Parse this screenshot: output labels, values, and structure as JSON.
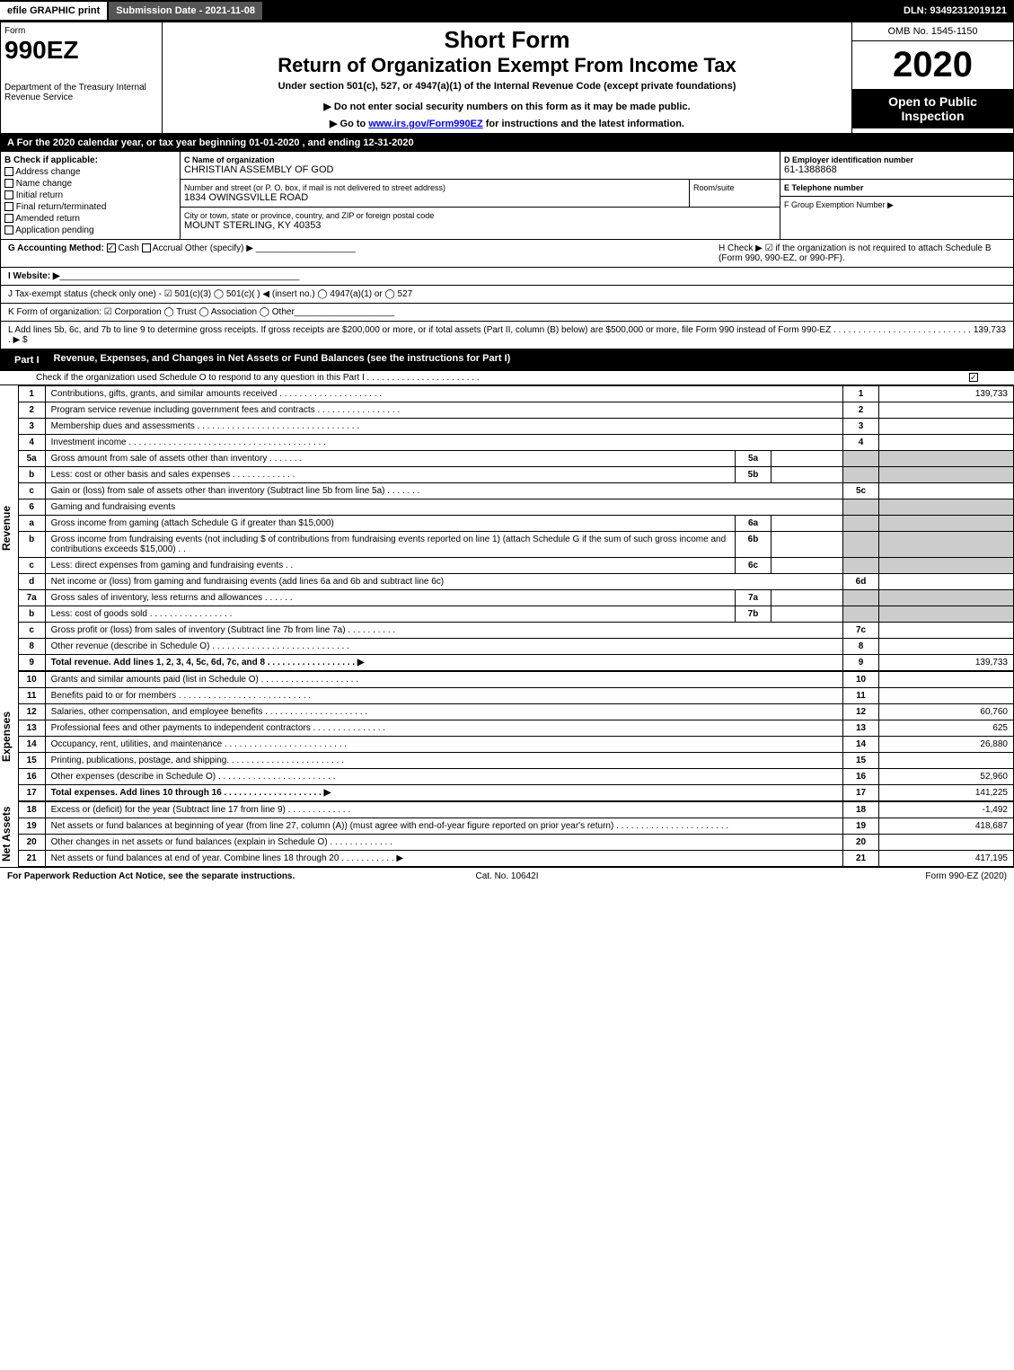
{
  "topbar": {
    "efile": "efile GRAPHIC print",
    "submission": "Submission Date - 2021-11-08",
    "dln": "DLN: 93492312019121"
  },
  "header": {
    "form_label": "Form",
    "form_number": "990EZ",
    "dept": "Department of the Treasury Internal Revenue Service",
    "short_form": "Short Form",
    "return_title": "Return of Organization Exempt From Income Tax",
    "under": "Under section 501(c), 527, or 4947(a)(1) of the Internal Revenue Code (except private foundations)",
    "donot": "▶ Do not enter social security numbers on this form as it may be made public.",
    "goto_prefix": "▶ Go to ",
    "goto_link": "www.irs.gov/Form990EZ",
    "goto_suffix": " for instructions and the latest information.",
    "omb": "OMB No. 1545-1150",
    "year": "2020",
    "open": "Open to Public Inspection"
  },
  "line_a": "A For the 2020 calendar year, or tax year beginning 01-01-2020 , and ending 12-31-2020",
  "box_b": {
    "header": "B Check if applicable:",
    "items": [
      "Address change",
      "Name change",
      "Initial return",
      "Final return/terminated",
      "Amended return",
      "Application pending"
    ]
  },
  "box_c": {
    "label": "C Name of organization",
    "name": "CHRISTIAN ASSEMBLY OF GOD",
    "addr_label": "Number and street (or P. O. box, if mail is not delivered to street address)",
    "addr": "1834 OWINGSVILLE ROAD",
    "room_label": "Room/suite",
    "city_label": "City or town, state or province, country, and ZIP or foreign postal code",
    "city": "MOUNT STERLING, KY  40353"
  },
  "box_d": {
    "label": "D Employer identification number",
    "ein": "61-1388868",
    "tel_label": "E Telephone number",
    "grp_label": "F Group Exemption Number  ▶"
  },
  "line_g": {
    "label": "G Accounting Method:",
    "cash": "Cash",
    "accrual": "Accrual",
    "other": "Other (specify) ▶"
  },
  "line_h": "H  Check ▶ ☑ if the organization is not required to attach Schedule B (Form 990, 990-EZ, or 990-PF).",
  "line_i": "I Website: ▶",
  "line_j": "J Tax-exempt status (check only one) - ☑ 501(c)(3)  ◯ 501(c)(  ) ◀ (insert no.)  ◯ 4947(a)(1) or  ◯ 527",
  "line_k": "K Form of organization:  ☑ Corporation  ◯ Trust  ◯ Association  ◯ Other",
  "line_l": {
    "text": "L Add lines 5b, 6c, and 7b to line 9 to determine gross receipts. If gross receipts are $200,000 or more, or if total assets (Part II, column (B) below) are $500,000 or more, file Form 990 instead of Form 990-EZ . . . . . . . . . . . . . . . . . . . . . . . . . . . . . ▶ $",
    "value": "139,733"
  },
  "part1": {
    "label": "Part I",
    "title": "Revenue, Expenses, and Changes in Net Assets or Fund Balances (see the instructions for Part I)",
    "sub": "Check if the organization used Schedule O to respond to any question in this Part I . . . . . . . . . . . . . . . . . . . . . . ."
  },
  "revenue_label": "Revenue",
  "expenses_label": "Expenses",
  "netassets_label": "Net Assets",
  "rows": [
    {
      "n": "1",
      "desc": "Contributions, gifts, grants, and similar amounts received . . . . . . . . . . . . . . . . . . . . .",
      "line": "1",
      "val": "139,733"
    },
    {
      "n": "2",
      "desc": "Program service revenue including government fees and contracts . . . . . . . . . . . . . . . . .",
      "line": "2",
      "val": ""
    },
    {
      "n": "3",
      "desc": "Membership dues and assessments . . . . . . . . . . . . . . . . . . . . . . . . . . . . . . . . .",
      "line": "3",
      "val": ""
    },
    {
      "n": "4",
      "desc": "Investment income . . . . . . . . . . . . . . . . . . . . . . . . . . . . . . . . . . . . . . . .",
      "line": "4",
      "val": ""
    },
    {
      "n": "5a",
      "desc": "Gross amount from sale of assets other than inventory . . . . . . .",
      "sub": "5a",
      "subval": "",
      "shade": true
    },
    {
      "n": "b",
      "desc": "Less: cost or other basis and sales expenses . . . . . . . . . . . . .",
      "sub": "5b",
      "subval": "",
      "shade": true
    },
    {
      "n": "c",
      "desc": "Gain or (loss) from sale of assets other than inventory (Subtract line 5b from line 5a) . . . . . . .",
      "line": "5c",
      "val": ""
    },
    {
      "n": "6",
      "desc": "Gaming and fundraising events",
      "shade": true
    },
    {
      "n": "a",
      "desc": "Gross income from gaming (attach Schedule G if greater than $15,000)",
      "sub": "6a",
      "subval": "",
      "shade": true
    },
    {
      "n": "b",
      "desc": "Gross income from fundraising events (not including $                    of contributions from fundraising events reported on line 1) (attach Schedule G if the sum of such gross income and contributions exceeds $15,000)   . .",
      "sub": "6b",
      "subval": "",
      "shade": true
    },
    {
      "n": "c",
      "desc": "Less: direct expenses from gaming and fundraising events   . .",
      "sub": "6c",
      "subval": "",
      "shade": true
    },
    {
      "n": "d",
      "desc": "Net income or (loss) from gaming and fundraising events (add lines 6a and 6b and subtract line 6c)",
      "line": "6d",
      "val": ""
    },
    {
      "n": "7a",
      "desc": "Gross sales of inventory, less returns and allowances . . . . . .",
      "sub": "7a",
      "subval": "",
      "shade": true
    },
    {
      "n": "b",
      "desc": "Less: cost of goods sold         . . . . . . . . . . . . . . . . .",
      "sub": "7b",
      "subval": "",
      "shade": true
    },
    {
      "n": "c",
      "desc": "Gross profit or (loss) from sales of inventory (Subtract line 7b from line 7a) . . . . . . . . . .",
      "line": "7c",
      "val": ""
    },
    {
      "n": "8",
      "desc": "Other revenue (describe in Schedule O) . . . . . . . . . . . . . . . . . . . . . . . . . . . .",
      "line": "8",
      "val": ""
    },
    {
      "n": "9",
      "desc": "Total revenue. Add lines 1, 2, 3, 4, 5c, 6d, 7c, and 8  . . . . . . . . . . . . . . . . . .  ▶",
      "line": "9",
      "val": "139,733",
      "bold": true
    }
  ],
  "exp_rows": [
    {
      "n": "10",
      "desc": "Grants and similar amounts paid (list in Schedule O) . . . . . . . . . . . . . . . . . . . .",
      "line": "10",
      "val": ""
    },
    {
      "n": "11",
      "desc": "Benefits paid to or for members      . . . . . . . . . . . . . . . . . . . . . . . . . . .",
      "line": "11",
      "val": ""
    },
    {
      "n": "12",
      "desc": "Salaries, other compensation, and employee benefits . . . . . . . . . . . . . . . . . . . . .",
      "line": "12",
      "val": "60,760"
    },
    {
      "n": "13",
      "desc": "Professional fees and other payments to independent contractors . . . . . . . . . . . . . . .",
      "line": "13",
      "val": "625"
    },
    {
      "n": "14",
      "desc": "Occupancy, rent, utilities, and maintenance . . . . . . . . . . . . . . . . . . . . . . . . .",
      "line": "14",
      "val": "26,880"
    },
    {
      "n": "15",
      "desc": "Printing, publications, postage, and shipping. . . . . . . . . . . . . . . . . . . . . . . .",
      "line": "15",
      "val": ""
    },
    {
      "n": "16",
      "desc": "Other expenses (describe in Schedule O)     . . . . . . . . . . . . . . . . . . . . . . . .",
      "line": "16",
      "val": "52,960"
    },
    {
      "n": "17",
      "desc": "Total expenses. Add lines 10 through 16     . . . . . . . . . . . . . . . . . . . .  ▶",
      "line": "17",
      "val": "141,225",
      "bold": true
    }
  ],
  "na_rows": [
    {
      "n": "18",
      "desc": "Excess or (deficit) for the year (Subtract line 17 from line 9)       . . . . . . . . . . . . .",
      "line": "18",
      "val": "-1,492"
    },
    {
      "n": "19",
      "desc": "Net assets or fund balances at beginning of year (from line 27, column (A)) (must agree with end-of-year figure reported on prior year's return) . . . . . . . . . . . . . . . . . . . . . . .",
      "line": "19",
      "val": "418,687"
    },
    {
      "n": "20",
      "desc": "Other changes in net assets or fund balances (explain in Schedule O) . . . . . . . . . . . . .",
      "line": "20",
      "val": ""
    },
    {
      "n": "21",
      "desc": "Net assets or fund balances at end of year. Combine lines 18 through 20 . . . . . . . . . . .  ▶",
      "line": "21",
      "val": "417,195"
    }
  ],
  "footer": {
    "left": "For Paperwork Reduction Act Notice, see the separate instructions.",
    "center": "Cat. No. 10642I",
    "right": "Form 990-EZ (2020)"
  }
}
